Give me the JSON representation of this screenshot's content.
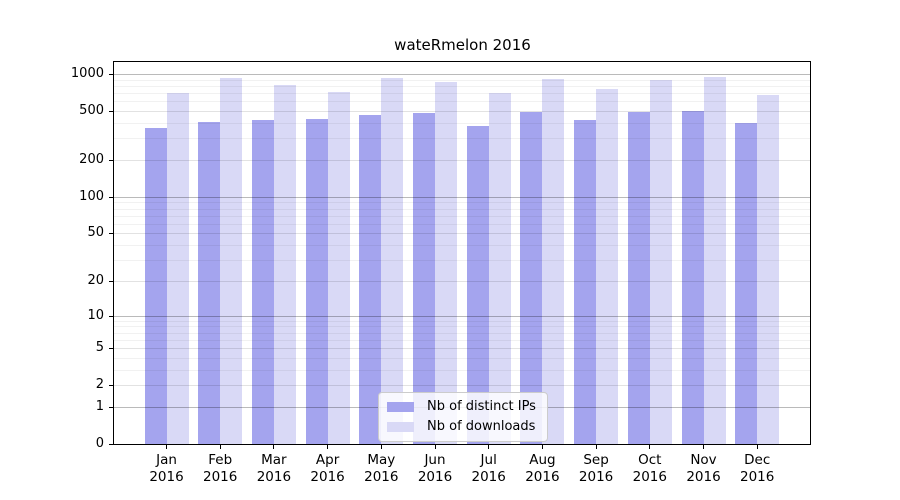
{
  "chart_data": {
    "type": "bar",
    "title": "wateRmelon 2016",
    "categories": [
      "Jan",
      "Feb",
      "Mar",
      "Apr",
      "May",
      "Jun",
      "Jul",
      "Aug",
      "Sep",
      "Oct",
      "Nov",
      "Dec"
    ],
    "year_label": "2016",
    "series": [
      {
        "name": "Nb of distinct IPs",
        "color": "#a4a4ee",
        "values": [
          362,
          410,
          421,
          432,
          467,
          485,
          377,
          492,
          420,
          487,
          497,
          399
        ]
      },
      {
        "name": "Nb of downloads",
        "color": "#d9d9f6",
        "values": [
          700,
          929,
          818,
          712,
          924,
          858,
          700,
          910,
          760,
          899,
          946,
          670
        ]
      }
    ],
    "xlabel": "",
    "ylabel": "",
    "yscale": "log1p",
    "ylim": [
      0,
      1250
    ],
    "yticks": [
      0,
      1,
      2,
      5,
      10,
      20,
      50,
      100,
      200,
      500,
      1000
    ],
    "decade_ticks": [
      1,
      10,
      100,
      1000
    ],
    "minor_gridlines": [
      3,
      4,
      6,
      7,
      8,
      9,
      30,
      40,
      60,
      70,
      80,
      90,
      300,
      400,
      600,
      700,
      800,
      900
    ],
    "grid": "horizontal major+minor",
    "legend_position": "lower center",
    "colors": {
      "background": "#ffffff",
      "axis": "#000000",
      "grid_decade": "#b8b8b8",
      "grid_major": "#e0e0e0",
      "grid_minor": "#f0f0f0"
    }
  }
}
